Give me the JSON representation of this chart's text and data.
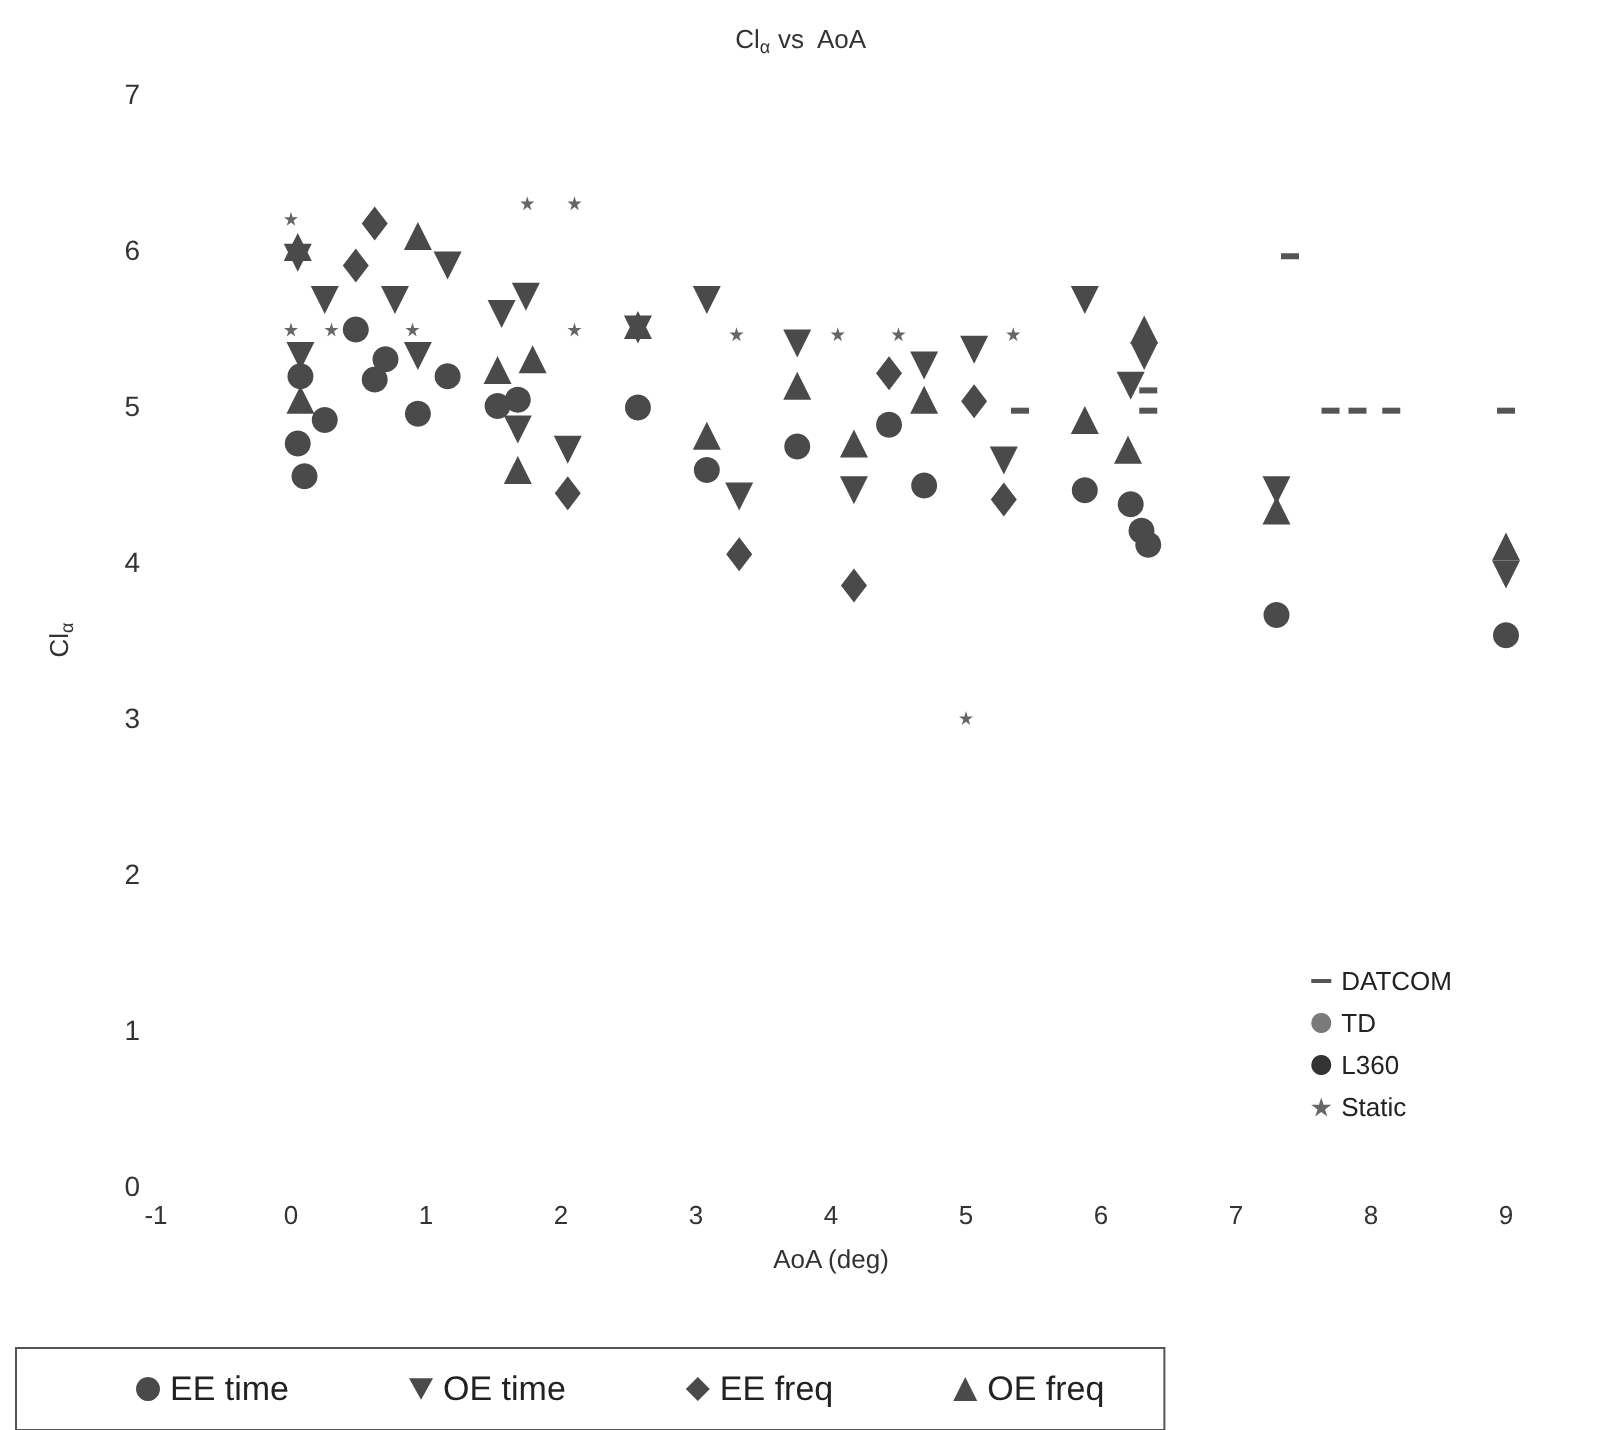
{
  "chart_data": {
    "type": "scatter",
    "title": "Cl$_{α}$ vs  AoA",
    "xlabel": "AoA (deg)",
    "ylabel": "Cl$_{α}$",
    "xlim": [
      -1,
      9
    ],
    "xticks": [
      -1,
      0,
      1,
      2,
      3,
      4,
      5,
      6,
      7,
      8,
      9
    ],
    "ylim": [
      0,
      7
    ],
    "yticks": [
      0,
      1,
      2,
      3,
      4,
      5,
      6,
      7
    ],
    "grid": false,
    "legend": "bottom right",
    "series": [
      {
        "name": "DATCOM",
        "color": "#555555",
        "marker": "square",
        "x": [
          5.4,
          6.35,
          6.35,
          7.4,
          7.7,
          7.9,
          8.15,
          9.0
        ],
        "values": [
          4.97,
          5.1,
          4.97,
          5.96,
          4.97,
          4.97,
          4.97,
          4.97
        ]
      },
      {
        "name": "TD",
        "color": "#7a7a7a",
        "marker": "circle"
      },
      {
        "name": "L360",
        "color": "#333333",
        "marker": "circle"
      },
      {
        "name": "Static",
        "color": "#666666",
        "marker": "star",
        "x": [
          0,
          0.3,
          0.9,
          2.1,
          3.3,
          4.05,
          4.5,
          5.35,
          0,
          2.1,
          1.75,
          5.0
        ],
        "values": [
          5.49,
          5.49,
          5.49,
          5.49,
          5.46,
          5.46,
          5.46,
          5.46,
          6.2,
          6.3,
          6.3,
          3.0
        ]
      },
      {
        "name": "EE time",
        "color": "#4a4a4a",
        "marker": "circle",
        "x": [
          0.48,
          0.7,
          0.62,
          1.16,
          0.07,
          0.25,
          0.94,
          0.05,
          0.1,
          1.68,
          1.53,
          2.57,
          3.08,
          3.75,
          4.43,
          4.69,
          5.88,
          6.22,
          6.35,
          6.3,
          7.3,
          9.0
        ],
        "values": [
          5.49,
          5.3,
          5.17,
          5.19,
          5.19,
          4.91,
          4.95,
          4.76,
          4.55,
          5.04,
          5.0,
          4.99,
          4.59,
          4.74,
          4.88,
          4.49,
          4.46,
          4.37,
          4.11,
          4.2,
          3.66,
          3.53
        ]
      },
      {
        "name": "OE time",
        "color": "#4a4a4a",
        "marker": "triangle-down",
        "x": [
          0.05,
          1.16,
          0.25,
          0.77,
          0.07,
          0.94,
          1.74,
          1.56,
          1.68,
          2.05,
          2.57,
          3.08,
          3.32,
          3.75,
          4.17,
          4.69,
          5.06,
          5.28,
          5.88,
          6.32,
          6.22,
          7.3,
          9.0
        ],
        "values": [
          5.95,
          5.9,
          5.68,
          5.68,
          5.32,
          5.32,
          5.7,
          5.59,
          4.85,
          4.72,
          5.49,
          5.68,
          4.42,
          5.4,
          4.46,
          5.26,
          5.36,
          4.65,
          5.68,
          5.32,
          5.13,
          4.46,
          3.92
        ]
      },
      {
        "name": "EE freq",
        "color": "#4a4a4a",
        "marker": "diamond",
        "x": [
          0.62,
          0.48,
          2.05,
          3.32,
          4.17,
          4.43,
          5.06,
          5.28
        ],
        "values": [
          6.17,
          5.9,
          4.44,
          4.05,
          3.85,
          5.21,
          5.03,
          4.4
        ]
      },
      {
        "name": "OE freq",
        "color": "#4a4a4a",
        "marker": "triangle",
        "x": [
          0.05,
          0.94,
          0.07,
          1.53,
          1.79,
          1.68,
          2.57,
          3.08,
          3.75,
          4.17,
          4.69,
          5.88,
          6.32,
          6.2,
          7.3,
          9.0
        ],
        "values": [
          6.02,
          6.09,
          5.04,
          5.23,
          5.3,
          4.59,
          5.52,
          4.81,
          5.13,
          4.76,
          5.04,
          4.91,
          5.49,
          4.72,
          4.33,
          4.1
        ]
      }
    ]
  }
}
